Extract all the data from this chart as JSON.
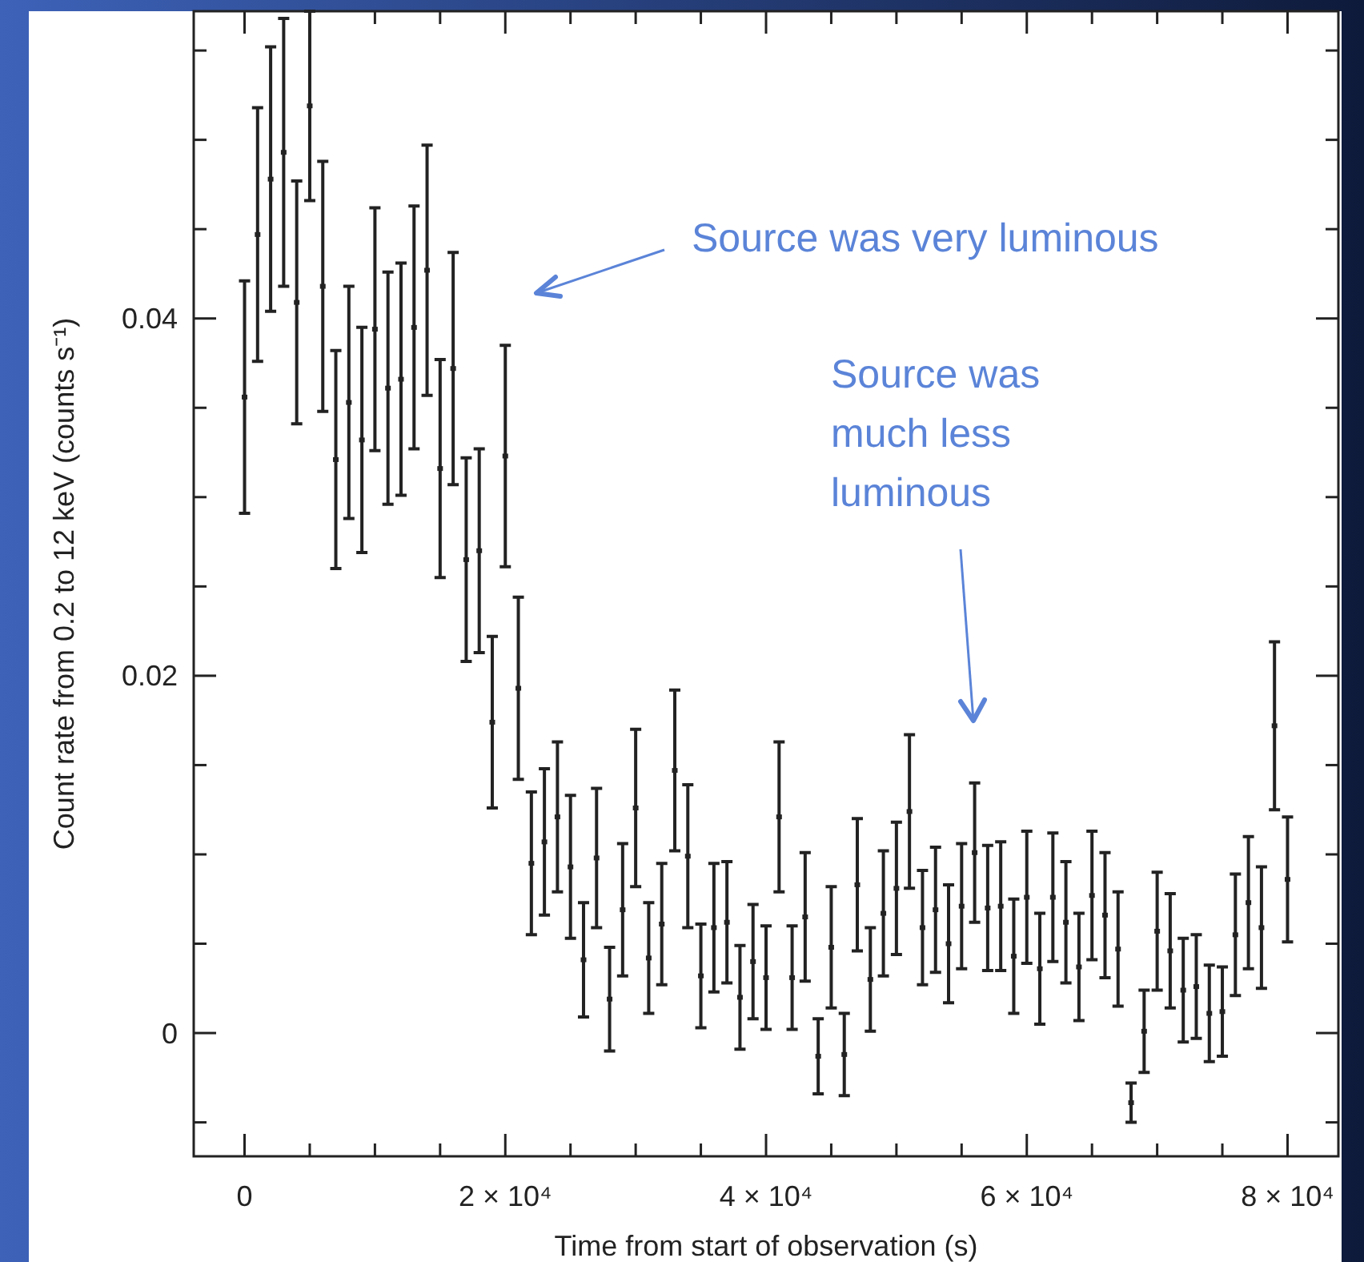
{
  "chart_data": {
    "type": "scatter",
    "xlabel": "Time from start of observation (s)",
    "ylabel": "Count rate from 0.2 to 12 keV (counts s⁻¹)",
    "xlim": [
      -3900,
      83900
    ],
    "ylim": [
      -0.0069,
      0.0572
    ],
    "xticks": [
      0,
      {
        "value": 5000,
        "label": null
      },
      {
        "value": 10000,
        "label": null
      },
      {
        "value": 15000,
        "label": null
      },
      {
        "value": 20000,
        "label": "2 × 10⁴"
      },
      {
        "value": 25000,
        "label": null
      },
      {
        "value": 30000,
        "label": null
      },
      {
        "value": 35000,
        "label": null
      },
      {
        "value": 40000,
        "label": "4 × 10⁴"
      },
      {
        "value": 45000,
        "label": null
      },
      {
        "value": 50000,
        "label": null
      },
      {
        "value": 55000,
        "label": null
      },
      {
        "value": 60000,
        "label": "6 × 10⁴"
      },
      {
        "value": 65000,
        "label": null
      },
      {
        "value": 70000,
        "label": null
      },
      {
        "value": 75000,
        "label": null
      },
      {
        "value": 80000,
        "label": "8 × 10⁴"
      }
    ],
    "yticks": [
      {
        "value": -0.005,
        "label": null
      },
      0,
      {
        "value": 0.005,
        "label": null
      },
      {
        "value": 0.01,
        "label": null
      },
      {
        "value": 0.015,
        "label": null
      },
      0.02,
      {
        "value": 0.025,
        "label": null
      },
      {
        "value": 0.03,
        "label": null
      },
      {
        "value": 0.035,
        "label": null
      },
      0.04,
      {
        "value": 0.045,
        "label": null
      },
      {
        "value": 0.05,
        "label": null
      },
      {
        "value": 0.055,
        "label": null
      }
    ],
    "x": [
      0,
      1000,
      2000,
      3000,
      4000,
      5000,
      6000,
      7000,
      8000,
      9000,
      10000,
      11000,
      12000,
      13000,
      14000,
      15000,
      16000,
      17000,
      18000,
      19000,
      20000,
      21000,
      22000,
      23000,
      24000,
      25000,
      26000,
      27000,
      28000,
      29000,
      30000,
      31000,
      32000,
      33000,
      34000,
      35000,
      36000,
      37000,
      38000,
      39000,
      40000,
      41000,
      42000,
      43000,
      44000,
      45000,
      46000,
      47000,
      48000,
      49000,
      50000,
      51000,
      52000,
      53000,
      54000,
      55000,
      56000,
      57000,
      58000,
      59000,
      60000,
      61000,
      62000,
      63000,
      64000,
      65000,
      66000,
      67000,
      68000,
      69000,
      70000,
      71000,
      72000,
      73000,
      74000,
      75000,
      76000,
      77000,
      78000,
      79000,
      80000
    ],
    "series": [
      {
        "color": "#222222",
        "values": [
          0.0356,
          0.0447,
          0.0478,
          0.0493,
          0.0409,
          0.0519,
          0.0418,
          0.0321,
          0.0353,
          0.0332,
          0.0394,
          0.0361,
          0.0366,
          0.0395,
          0.0427,
          0.0316,
          0.0372,
          0.0265,
          0.027,
          0.0174,
          0.0323,
          0.0193,
          0.0095,
          0.0107,
          0.0121,
          0.0093,
          0.0041,
          0.0098,
          0.0019,
          0.0069,
          0.0126,
          0.0042,
          0.0061,
          0.0147,
          0.0099,
          0.0032,
          0.0059,
          0.0062,
          0.002,
          0.004,
          0.0031,
          0.0121,
          0.0031,
          0.0065,
          -0.0013,
          0.0048,
          -0.0012,
          0.0083,
          0.003,
          0.0067,
          0.0081,
          0.0124,
          0.0059,
          0.0069,
          0.005,
          0.0071,
          0.0101,
          0.007,
          0.0071,
          0.0043,
          0.0076,
          0.0036,
          0.0076,
          0.0062,
          0.0037,
          0.0077,
          0.0066,
          0.0047,
          -0.0039,
          0.0001,
          0.0057,
          0.0046,
          0.0024,
          0.0026,
          0.0011,
          0.0012,
          0.0055,
          0.0073,
          0.0059,
          0.0172,
          0.0086
        ],
        "errors": [
          0.0065,
          0.0071,
          0.0074,
          0.0075,
          0.0068,
          0.0053,
          0.007,
          0.0061,
          0.0065,
          0.0063,
          0.0068,
          0.0065,
          0.0065,
          0.0068,
          0.007,
          0.0061,
          0.0065,
          0.0057,
          0.0057,
          0.0048,
          0.0062,
          0.0051,
          0.004,
          0.0041,
          0.0042,
          0.004,
          0.0032,
          0.0039,
          0.0029,
          0.0037,
          0.0044,
          0.0031,
          0.0034,
          0.0045,
          0.004,
          0.0029,
          0.0036,
          0.0034,
          0.0029,
          0.0032,
          0.0029,
          0.0042,
          0.0029,
          0.0036,
          0.0021,
          0.0034,
          0.0023,
          0.0037,
          0.0029,
          0.0035,
          0.0037,
          0.0043,
          0.0032,
          0.0035,
          0.0033,
          0.0035,
          0.0039,
          0.0035,
          0.0036,
          0.0032,
          0.0037,
          0.0031,
          0.0036,
          0.0034,
          0.003,
          0.0036,
          0.0035,
          0.0032,
          0.0011,
          0.0023,
          0.0033,
          0.0032,
          0.0029,
          0.0029,
          0.0027,
          0.0025,
          0.0034,
          0.0037,
          0.0034,
          0.0047,
          0.0035
        ]
      }
    ],
    "annotations": [
      "Source was very luminous",
      "Source was much less luminous"
    ]
  }
}
